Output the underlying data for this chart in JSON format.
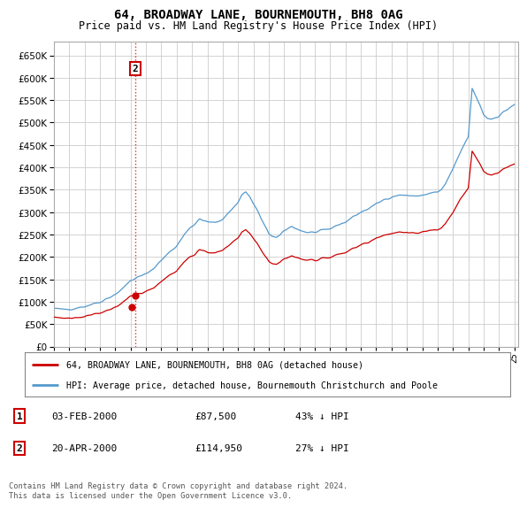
{
  "title": "64, BROADWAY LANE, BOURNEMOUTH, BH8 0AG",
  "subtitle": "Price paid vs. HM Land Registry's House Price Index (HPI)",
  "ylabel_ticks": [
    0,
    50000,
    100000,
    150000,
    200000,
    250000,
    300000,
    350000,
    400000,
    450000,
    500000,
    550000,
    600000,
    650000
  ],
  "ylim": [
    0,
    680000
  ],
  "xlim_start": 1995.0,
  "xlim_end": 2025.25,
  "legend_red_label": "64, BROADWAY LANE, BOURNEMOUTH, BH8 0AG (detached house)",
  "legend_blue_label": "HPI: Average price, detached house, Bournemouth Christchurch and Poole",
  "sale1_date": "03-FEB-2000",
  "sale1_price": "£87,500",
  "sale1_hpi": "43% ↓ HPI",
  "sale1_x": 2000.083,
  "sale1_y": 87500,
  "sale2_date": "20-APR-2000",
  "sale2_price": "£114,950",
  "sale2_hpi": "27% ↓ HPI",
  "sale2_x": 2000.292,
  "sale2_y": 114950,
  "footer": "Contains HM Land Registry data © Crown copyright and database right 2024.\nThis data is licensed under the Open Government Licence v3.0.",
  "bg_color": "#ffffff",
  "grid_color": "#cccccc",
  "red_color": "#cc0000",
  "blue_color": "#5599cc",
  "title_fontsize": 10,
  "subtitle_fontsize": 8.5
}
